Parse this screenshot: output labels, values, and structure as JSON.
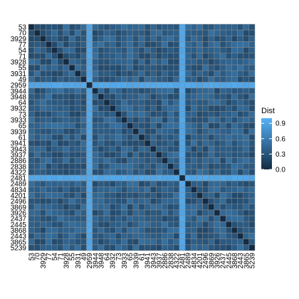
{
  "chart_data": {
    "type": "heatmap",
    "labels": [
      "53",
      "70",
      "3929",
      "77",
      "54",
      "71",
      "3928",
      "55",
      "3931",
      "49",
      "2959",
      "3944",
      "3948",
      "64",
      "3932",
      "73",
      "3933",
      "65",
      "3939",
      "61",
      "3941",
      "3943",
      "3937",
      "2886",
      "2838",
      "4322",
      "2481",
      "2489",
      "4834",
      "4201",
      "2496",
      "3869",
      "3926",
      "2437",
      "2445",
      "3868",
      "2443",
      "3865",
      "5239"
    ],
    "xlabel": "",
    "ylabel": "",
    "colorscale": {
      "low": "#132B43",
      "high": "#56B1F7",
      "min": 0.0,
      "max": 1.0
    },
    "legend": {
      "title": "Dist",
      "ticks": [
        "0.9",
        "0.6",
        "0.3",
        "0.0"
      ],
      "placement": "right"
    },
    "highlight_rows": [
      "2959",
      "2481"
    ],
    "highlight_value": 0.95,
    "typical_range": [
      0.22,
      0.52
    ],
    "diagonal_value": 0.0
  }
}
